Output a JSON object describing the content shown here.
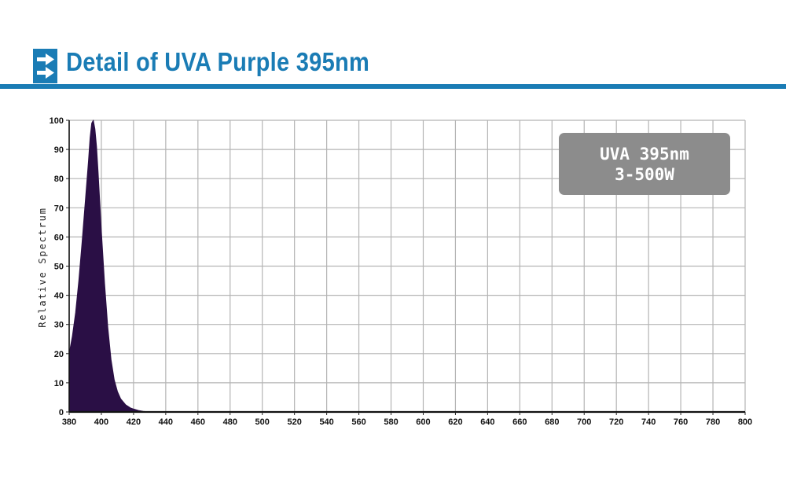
{
  "header": {
    "title": "Detail of UVA Purple 395nm",
    "icon": "double-right-arrow-icon",
    "accent_color": "#1a7cb5"
  },
  "callout": {
    "line1": "UVA 395nm",
    "line2": "3-500W",
    "background_color": "#8c8c8c"
  },
  "chart_data": {
    "type": "area",
    "title": "",
    "xlabel": "",
    "ylabel": "Relative Spectrum",
    "xlim": [
      380,
      800
    ],
    "ylim": [
      0,
      100
    ],
    "grid": true,
    "x_ticks": [
      380,
      400,
      420,
      440,
      460,
      480,
      500,
      520,
      540,
      560,
      580,
      600,
      620,
      640,
      660,
      680,
      700,
      720,
      740,
      760,
      780,
      800
    ],
    "y_ticks": [
      0,
      10,
      20,
      30,
      40,
      50,
      60,
      70,
      80,
      90,
      100
    ],
    "fill_color": "#2a0f45",
    "series": [
      {
        "name": "",
        "x": [
          380,
          382,
          384,
          386,
          388,
          390,
          392,
          393,
          394,
          395,
          396,
          397,
          398,
          400,
          402,
          404,
          406,
          408,
          410,
          412,
          415,
          418,
          420,
          423,
          426,
          430,
          440
        ],
        "y": [
          20,
          26,
          34,
          45,
          58,
          72,
          86,
          94,
          99,
          100,
          97,
          91,
          82,
          62,
          44,
          29,
          18,
          11,
          7,
          4.5,
          2.5,
          1.4,
          1,
          0.5,
          0.2,
          0,
          0
        ]
      }
    ]
  }
}
